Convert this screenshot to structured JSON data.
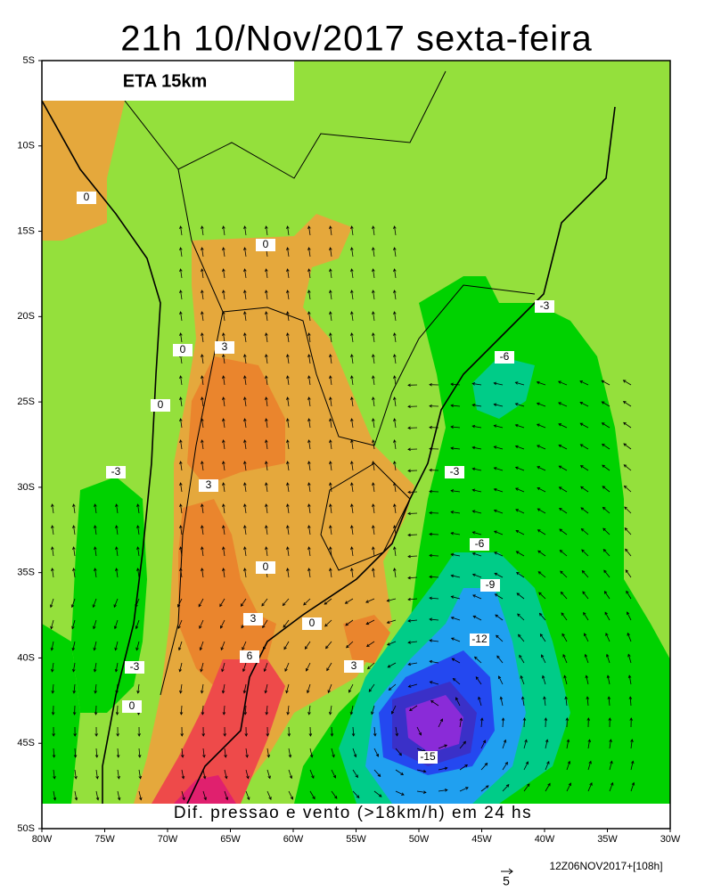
{
  "title": "21h 10/Nov/2017 sexta-feira",
  "model_label": "ETA 15km",
  "caption": "Dif. pressao e vento (>18km/h) em 24 hs",
  "run_info": "12Z06NOV2017+[108h]",
  "vector_scale": "5",
  "lat_labels": [
    "5S",
    "10S",
    "15S",
    "20S",
    "25S",
    "30S",
    "35S",
    "40S",
    "45S",
    "50S"
  ],
  "lon_labels": [
    "80W",
    "75W",
    "70W",
    "65W",
    "60W",
    "55W",
    "50W",
    "45W",
    "40W",
    "35W",
    "30W"
  ],
  "contour_labels": [
    "0",
    "0",
    "0",
    "3",
    "0",
    "-3",
    "3",
    "-3",
    "-6",
    "-3",
    "-6",
    "-9",
    "-12",
    "0",
    "3",
    "0",
    "6",
    "3",
    "-3",
    "0",
    "-15"
  ]
}
